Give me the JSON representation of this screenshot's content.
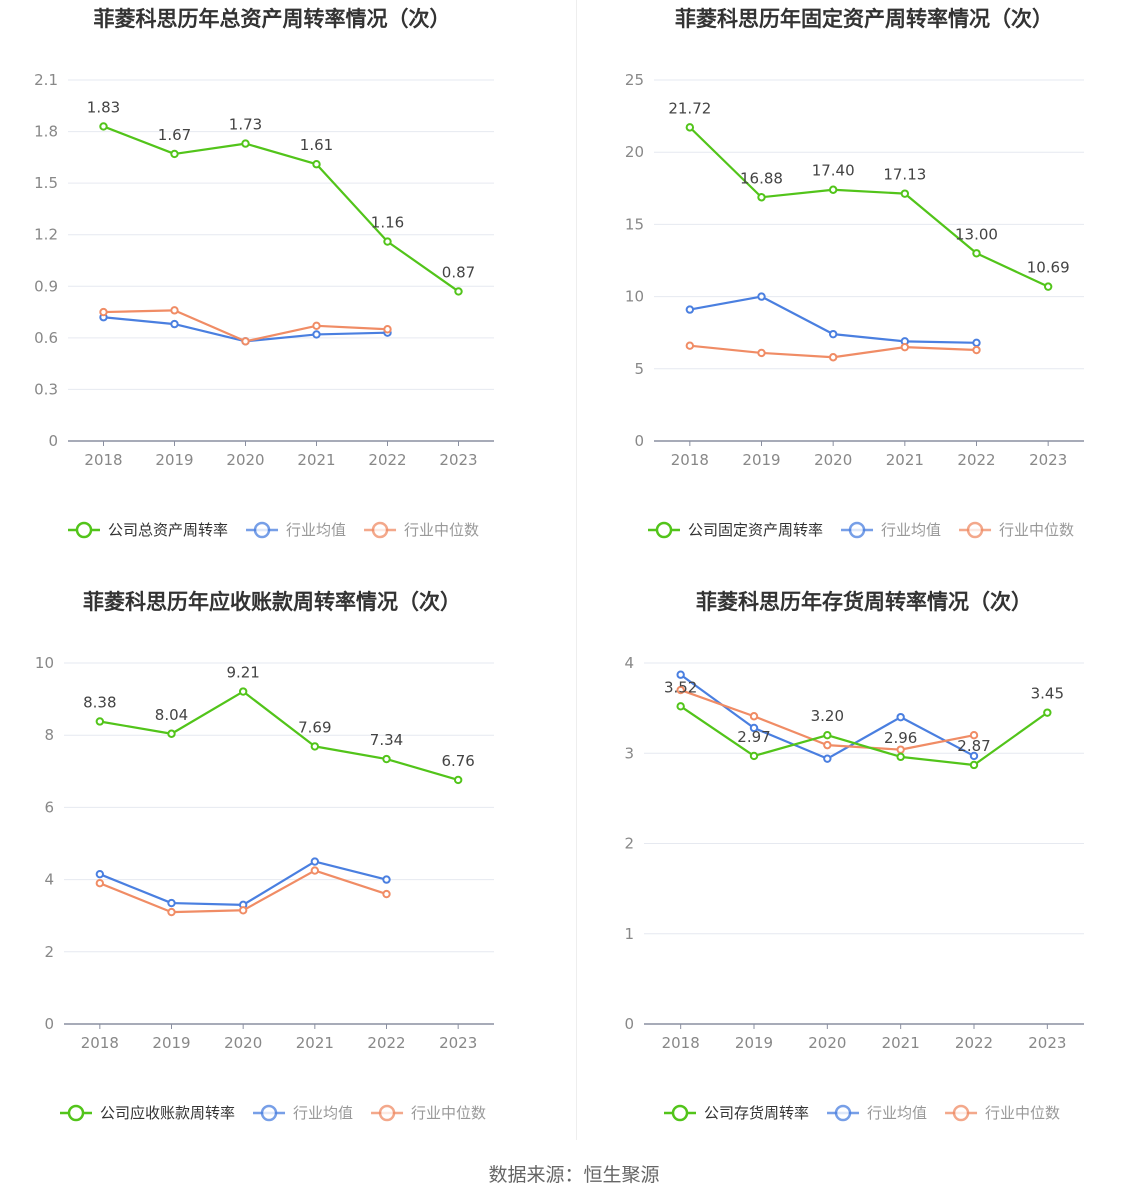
{
  "source_text": "数据来源：恒生聚源",
  "chart_data": [
    {
      "type": "line",
      "title": "菲菱科思历年总资产周转率情况（次）",
      "categories": [
        "2018",
        "2019",
        "2020",
        "2021",
        "2022",
        "2023"
      ],
      "ylim": [
        0,
        2.1
      ],
      "yticks": [
        "0",
        "0.3",
        "0.6",
        "0.9",
        "1.2",
        "1.5",
        "1.8",
        "2.1"
      ],
      "series": [
        {
          "name": "公司总资产周转率",
          "color": "#52c41a",
          "values": [
            1.83,
            1.67,
            1.73,
            1.61,
            1.16,
            0.87
          ],
          "labels": [
            "1.83",
            "1.67",
            "1.73",
            "1.61",
            "1.16",
            "0.87"
          ]
        },
        {
          "name": "行业均值",
          "color": "#4a7fe0",
          "values": [
            0.72,
            0.68,
            0.58,
            0.62,
            0.63,
            null
          ]
        },
        {
          "name": "行业中位数",
          "color": "#f08c65",
          "values": [
            0.75,
            0.76,
            0.58,
            0.67,
            0.65,
            null
          ]
        }
      ]
    },
    {
      "type": "line",
      "title": "菲菱科思历年固定资产周转率情况（次）",
      "categories": [
        "2018",
        "2019",
        "2020",
        "2021",
        "2022",
        "2023"
      ],
      "ylim": [
        0,
        25
      ],
      "yticks": [
        "0",
        "5",
        "10",
        "15",
        "20",
        "25"
      ],
      "series": [
        {
          "name": "公司固定资产周转率",
          "color": "#52c41a",
          "values": [
            21.72,
            16.88,
            17.4,
            17.13,
            13.0,
            10.69
          ],
          "labels": [
            "21.72",
            "16.88",
            "17.40",
            "17.13",
            "13.00",
            "10.69"
          ]
        },
        {
          "name": "行业均值",
          "color": "#4a7fe0",
          "values": [
            9.1,
            10.0,
            7.4,
            6.9,
            6.8,
            null
          ]
        },
        {
          "name": "行业中位数",
          "color": "#f08c65",
          "values": [
            6.6,
            6.1,
            5.8,
            6.5,
            6.3,
            null
          ]
        }
      ]
    },
    {
      "type": "line",
      "title": "菲菱科思历年应收账款周转率情况（次）",
      "categories": [
        "2018",
        "2019",
        "2020",
        "2021",
        "2022",
        "2023"
      ],
      "ylim": [
        0,
        10
      ],
      "yticks": [
        "0",
        "2",
        "4",
        "6",
        "8",
        "10"
      ],
      "series": [
        {
          "name": "公司应收账款周转率",
          "color": "#52c41a",
          "values": [
            8.38,
            8.04,
            9.21,
            7.69,
            7.34,
            6.76
          ],
          "labels": [
            "8.38",
            "8.04",
            "9.21",
            "7.69",
            "7.34",
            "6.76"
          ]
        },
        {
          "name": "行业均值",
          "color": "#4a7fe0",
          "values": [
            4.15,
            3.35,
            3.3,
            4.5,
            4.0,
            null
          ]
        },
        {
          "name": "行业中位数",
          "color": "#f08c65",
          "values": [
            3.9,
            3.1,
            3.15,
            4.25,
            3.6,
            null
          ]
        }
      ]
    },
    {
      "type": "line",
      "title": "菲菱科思历年存货周转率情况（次）",
      "categories": [
        "2018",
        "2019",
        "2020",
        "2021",
        "2022",
        "2023"
      ],
      "ylim": [
        0,
        4
      ],
      "yticks": [
        "0",
        "1",
        "2",
        "3",
        "4"
      ],
      "series": [
        {
          "name": "公司存货周转率",
          "color": "#52c41a",
          "values": [
            3.52,
            2.97,
            3.2,
            2.96,
            2.87,
            3.45
          ],
          "labels": [
            "3.52",
            "2.97",
            "3.20",
            "2.96",
            "2.87",
            "3.45"
          ]
        },
        {
          "name": "行业均值",
          "color": "#4a7fe0",
          "values": [
            3.87,
            3.28,
            2.94,
            3.4,
            2.97,
            null
          ]
        },
        {
          "name": "行业中位数",
          "color": "#f08c65",
          "values": [
            3.7,
            3.41,
            3.09,
            3.04,
            3.2,
            null
          ]
        }
      ]
    }
  ]
}
